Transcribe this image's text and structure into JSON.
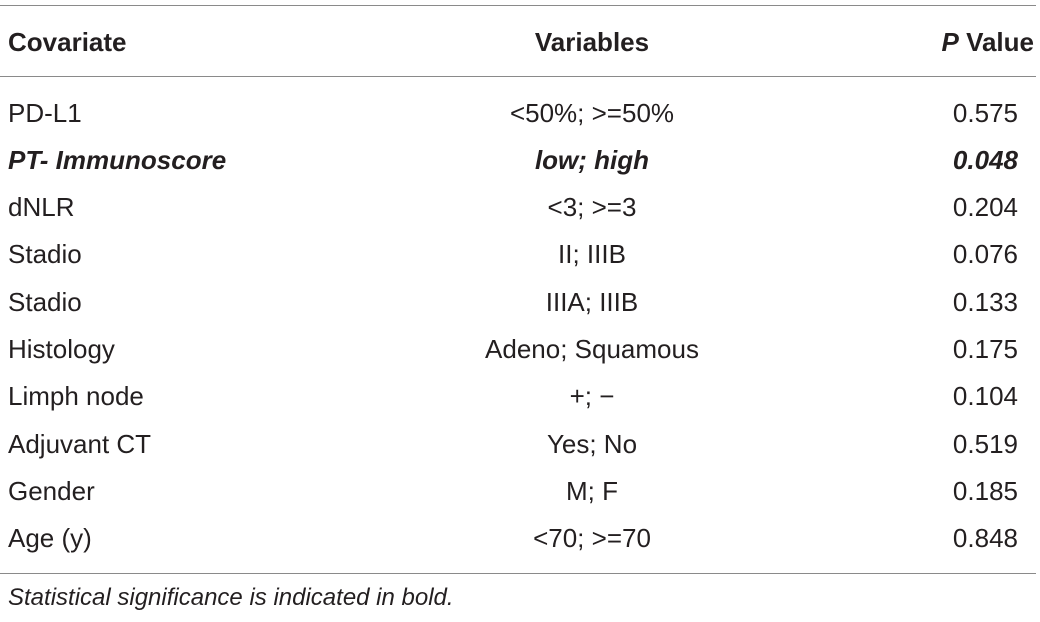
{
  "table": {
    "headers": {
      "covariate": "Covariate",
      "variables": "Variables",
      "p_italic": "P",
      "p_rest": " Value"
    },
    "rows": [
      {
        "covariate": "PD-L1",
        "variables": "<50%; >=50%",
        "p": "0.575",
        "significant": false
      },
      {
        "covariate": "PT- Immunoscore",
        "variables": "low; high",
        "p": "0.048",
        "significant": true
      },
      {
        "covariate": "dNLR",
        "variables": "<3; >=3",
        "p": "0.204",
        "significant": false
      },
      {
        "covariate": "Stadio",
        "variables": "II; IIIB",
        "p": "0.076",
        "significant": false
      },
      {
        "covariate": "Stadio",
        "variables": "IIIA; IIIB",
        "p": "0.133",
        "significant": false
      },
      {
        "covariate": "Histology",
        "variables": "Adeno; Squamous",
        "p": "0.175",
        "significant": false
      },
      {
        "covariate": "Limph node",
        "variables": "+; −",
        "p": "0.104",
        "significant": false
      },
      {
        "covariate": "Adjuvant CT",
        "variables": "Yes; No",
        "p": "0.519",
        "significant": false
      },
      {
        "covariate": "Gender",
        "variables": "M; F",
        "p": "0.185",
        "significant": false
      },
      {
        "covariate": "Age (y)",
        "variables": "<70; >=70",
        "p": "0.848",
        "significant": false
      }
    ],
    "footnote": "Statistical significance is indicated in bold."
  }
}
